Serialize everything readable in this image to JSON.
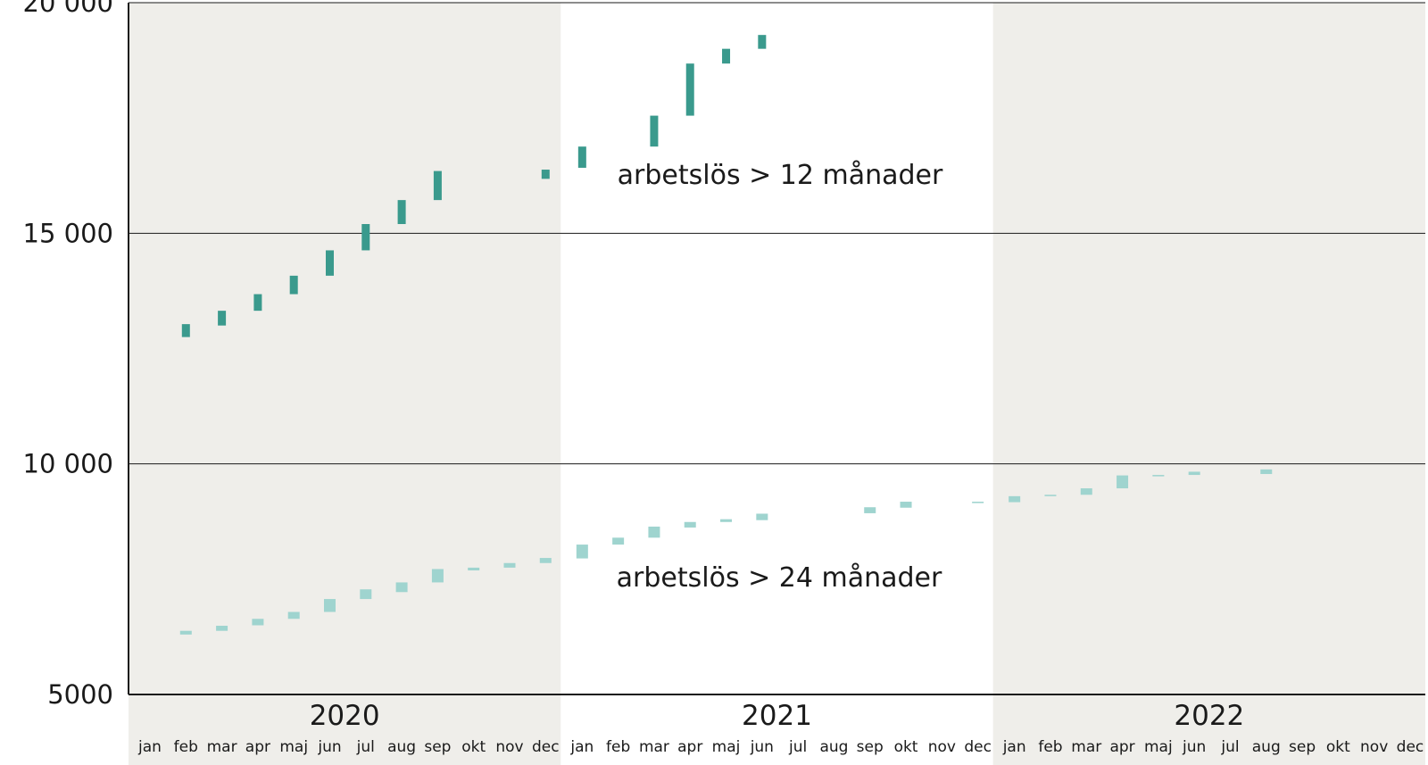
{
  "chart_data": {
    "type": "bar",
    "title": "",
    "xlabel": "",
    "ylabel": "",
    "ylim": [
      5000,
      20000
    ],
    "yticks": [
      5000,
      10000,
      15000,
      20000
    ],
    "ytick_labels": [
      "5000",
      "10 000",
      "15 000",
      "20 000"
    ],
    "grid": true,
    "years": [
      "2020",
      "2021",
      "2022"
    ],
    "months": [
      "jan",
      "feb",
      "mar",
      "apr",
      "maj",
      "jun",
      "jul",
      "aug",
      "sep",
      "okt",
      "nov",
      "dec"
    ],
    "colors": {
      "series_12": "#3a9a8d",
      "series_24": "#9fd4cf",
      "band_shaded": "#efeeea",
      "band_plain": "#ffffff",
      "axis": "#1a1a1a"
    },
    "series": [
      {
        "name": "arbetslös > 12 månader",
        "label": "arbetslös > 12 månader",
        "ranges": [
          {
            "x": "2020-feb",
            "low": 12750,
            "high": 13030
          },
          {
            "x": "2020-mar",
            "low": 13000,
            "high": 13320
          },
          {
            "x": "2020-apr",
            "low": 13320,
            "high": 13680
          },
          {
            "x": "2020-maj",
            "low": 13680,
            "high": 14080
          },
          {
            "x": "2020-jun",
            "low": 14080,
            "high": 14630
          },
          {
            "x": "2020-jul",
            "low": 14630,
            "high": 15200
          },
          {
            "x": "2020-aug",
            "low": 15200,
            "high": 15720
          },
          {
            "x": "2020-sep",
            "low": 15720,
            "high": 16350
          },
          {
            "x": "2020-dec",
            "low": 16180,
            "high": 16380
          },
          {
            "x": "2021-jan",
            "low": 16420,
            "high": 16880
          },
          {
            "x": "2021-mar",
            "low": 16880,
            "high": 17550
          },
          {
            "x": "2021-apr",
            "low": 17550,
            "high": 18680
          },
          {
            "x": "2021-maj",
            "low": 18680,
            "high": 19000
          },
          {
            "x": "2021-jun",
            "low": 19000,
            "high": 19300
          }
        ]
      },
      {
        "name": "arbetslös > 24 månader",
        "label": "arbetslös > 24 månader",
        "ranges": [
          {
            "x": "2020-feb",
            "low": 6300,
            "high": 6380
          },
          {
            "x": "2020-mar",
            "low": 6380,
            "high": 6490
          },
          {
            "x": "2020-apr",
            "low": 6500,
            "high": 6640
          },
          {
            "x": "2020-maj",
            "low": 6640,
            "high": 6790
          },
          {
            "x": "2020-jun",
            "low": 6790,
            "high": 7070
          },
          {
            "x": "2020-jul",
            "low": 7070,
            "high": 7280
          },
          {
            "x": "2020-aug",
            "low": 7220,
            "high": 7430
          },
          {
            "x": "2020-sep",
            "low": 7430,
            "high": 7720
          },
          {
            "x": "2020-okt",
            "low": 7690,
            "high": 7750
          },
          {
            "x": "2020-nov",
            "low": 7750,
            "high": 7850
          },
          {
            "x": "2020-dec",
            "low": 7850,
            "high": 7960
          },
          {
            "x": "2021-jan",
            "low": 7950,
            "high": 8250
          },
          {
            "x": "2021-feb",
            "low": 8250,
            "high": 8400
          },
          {
            "x": "2021-mar",
            "low": 8400,
            "high": 8640
          },
          {
            "x": "2021-apr",
            "low": 8620,
            "high": 8740
          },
          {
            "x": "2021-maj",
            "low": 8740,
            "high": 8800
          },
          {
            "x": "2021-jun",
            "low": 8780,
            "high": 8920
          },
          {
            "x": "2021-sep",
            "low": 8930,
            "high": 9060
          },
          {
            "x": "2021-okt",
            "low": 9050,
            "high": 9180
          },
          {
            "x": "2021-dec",
            "low": 9150,
            "high": 9180
          },
          {
            "x": "2022-jan",
            "low": 9170,
            "high": 9300
          },
          {
            "x": "2022-feb",
            "low": 9300,
            "high": 9330
          },
          {
            "x": "2022-mar",
            "low": 9330,
            "high": 9470
          },
          {
            "x": "2022-apr",
            "low": 9470,
            "high": 9750
          },
          {
            "x": "2022-maj",
            "low": 9730,
            "high": 9760
          },
          {
            "x": "2022-jun",
            "low": 9760,
            "high": 9830
          },
          {
            "x": "2022-aug",
            "low": 9780,
            "high": 9880
          }
        ]
      }
    ]
  }
}
